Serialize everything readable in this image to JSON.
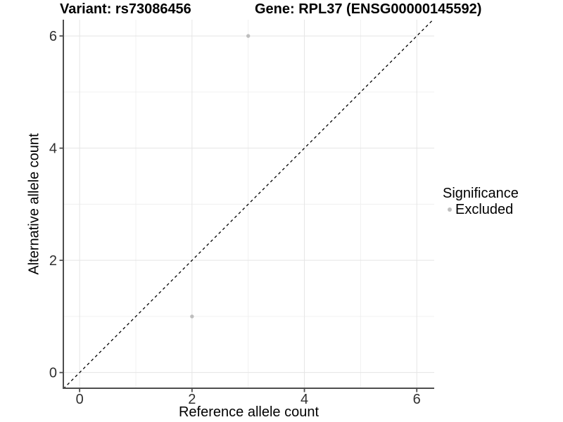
{
  "header": {
    "variant_title": "Variant: rs73086456",
    "gene_title": "Gene: RPL37 (ENSG00000145592)"
  },
  "legend": {
    "title": "Significance",
    "items": [
      {
        "label": "Excluded",
        "color": "#bebebe"
      }
    ]
  },
  "chart_data": {
    "type": "scatter",
    "title": "Variant: rs73086456 / Gene: RPL37 (ENSG00000145592)",
    "xlabel": "Reference allele count",
    "ylabel": "Alternative allele count",
    "xlim": [
      -0.29,
      6.31
    ],
    "ylim": [
      -0.28,
      6.29
    ],
    "x_ticks": [
      0,
      2,
      4,
      6
    ],
    "y_ticks": [
      0,
      2,
      4,
      6
    ],
    "x_minor": [
      1,
      3,
      5
    ],
    "y_minor": [
      1,
      3,
      5
    ],
    "grid": "major+minor",
    "legend_position": "right",
    "reference_line": {
      "type": "y=x",
      "style": "dashed",
      "color": "#000000"
    },
    "series": [
      {
        "name": "Excluded",
        "color": "#bebebe",
        "points": [
          {
            "x": 3,
            "y": 6
          },
          {
            "x": 2,
            "y": 1
          }
        ]
      }
    ]
  },
  "style": {
    "grid_major_color": "#e5e5e5",
    "grid_minor_color": "#f0f0f0",
    "axis_line_color": "#4d4d4d",
    "tick_label_color": "#303030",
    "background": "#ffffff"
  }
}
